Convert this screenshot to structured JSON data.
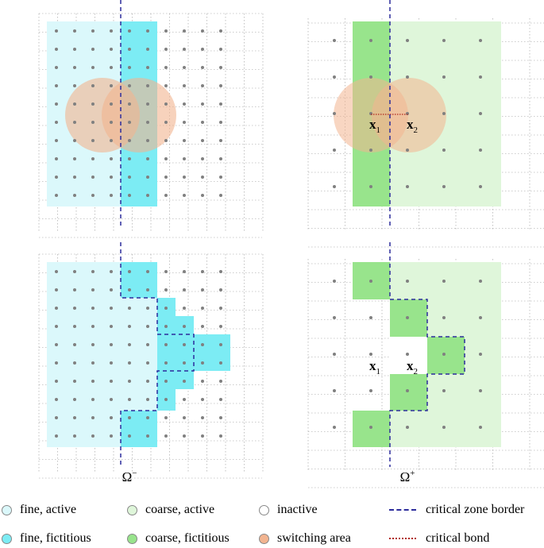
{
  "colors": {
    "fine_active": "#dbf8fb",
    "fine_fictitious": "#7cecf4",
    "coarse_active": "#dff6da",
    "coarse_fictitious": "#98e48c",
    "inactive": "#ffffff",
    "switching_area": "#f2b490",
    "border": "#2c2c9c",
    "bond": "#b0281e",
    "node": "#808080"
  },
  "panels": {
    "omega_minus": {
      "label": "Ω",
      "sup": "−"
    },
    "omega_plus": {
      "label": "Ω",
      "sup": "+"
    }
  },
  "points": {
    "x1": {
      "base": "x",
      "sub": "1"
    },
    "x2": {
      "base": "x",
      "sub": "2"
    }
  },
  "legend": {
    "fine_active": "fine, active",
    "coarse_active": "coarse, active",
    "inactive": "inactive",
    "critical_zone_border": "critical zone border",
    "fine_fictitious": "fine, fictitious",
    "coarse_fictitious": "coarse, fictitious",
    "switching_area": "switching area",
    "critical_bond": "critical bond"
  }
}
